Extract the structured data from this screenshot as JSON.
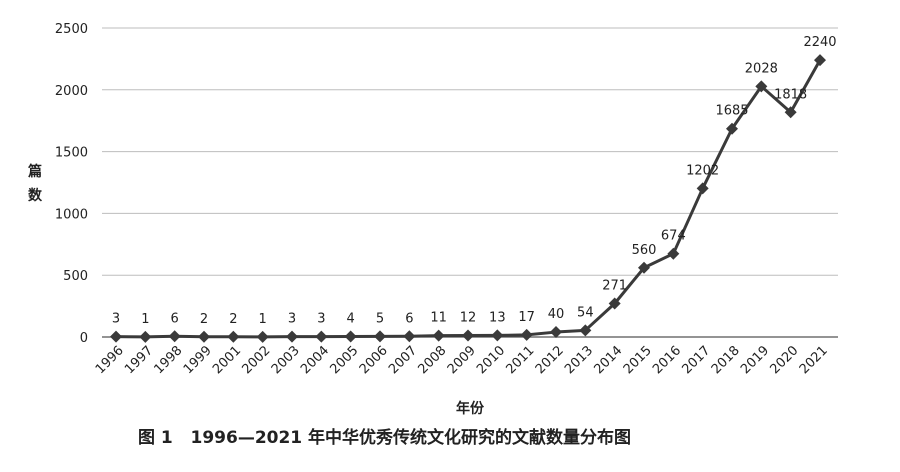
{
  "chart_data": {
    "type": "line",
    "categories": [
      "1996",
      "1997",
      "1998",
      "1999",
      "2001",
      "2002",
      "2003",
      "2004",
      "2005",
      "2006",
      "2007",
      "2008",
      "2009",
      "2010",
      "2011",
      "2012",
      "2013",
      "2014",
      "2015",
      "2016",
      "2017",
      "2018",
      "2019",
      "2020",
      "2021"
    ],
    "values": [
      3,
      1,
      6,
      2,
      2,
      1,
      3,
      3,
      4,
      5,
      6,
      11,
      12,
      13,
      17,
      40,
      54,
      271,
      560,
      674,
      1202,
      1685,
      2028,
      1818,
      2240
    ],
    "data_labels": [
      "3",
      "1",
      "6",
      "2",
      "2",
      "1",
      "3",
      "3",
      "4",
      "5",
      "6",
      "11",
      "12",
      "13",
      "17",
      "40",
      "54",
      "271",
      "560",
      "674",
      "1202",
      "1685",
      "2028",
      "1818",
      "2240"
    ],
    "ylim": [
      0,
      2500
    ],
    "yticks": [
      "0",
      "500",
      "1000",
      "1500",
      "2000",
      "2500"
    ],
    "ytick_values": [
      0,
      500,
      1000,
      1500,
      2000,
      2500
    ],
    "ylabel": "篇数",
    "xlabel": "年份",
    "grid": "horizontal",
    "legend": "none",
    "marker": "diamond",
    "line_color": "#3a3a3a"
  },
  "caption": "图 1   1996—2021 年中华优秀传统文化研究的文献数量分布图"
}
